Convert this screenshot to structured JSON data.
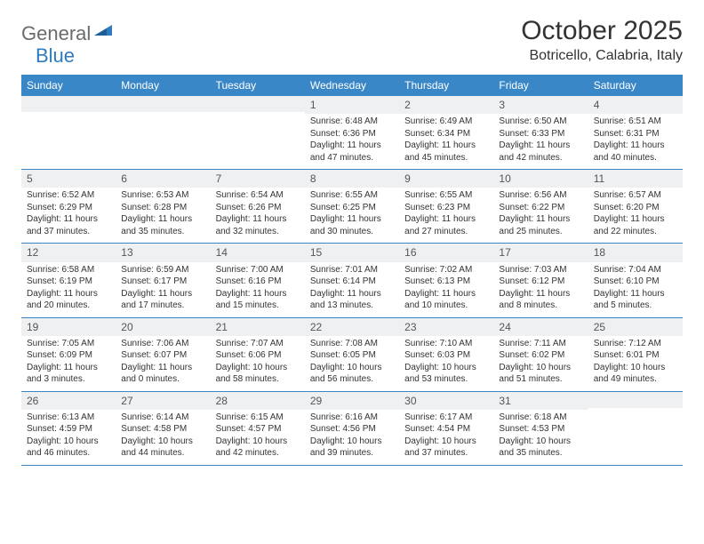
{
  "logo": {
    "text1": "General",
    "text2": "Blue"
  },
  "title": "October 2025",
  "location": "Botricello, Calabria, Italy",
  "colors": {
    "header_bg": "#3a87c7",
    "header_fg": "#ffffff",
    "daynum_bg": "#eef0f2",
    "daynum_fg": "#555555",
    "body_text": "#333333",
    "logo_gray": "#6b6b6b",
    "logo_blue": "#2f7bbf",
    "rule": "#3a87c7"
  },
  "dayNames": [
    "Sunday",
    "Monday",
    "Tuesday",
    "Wednesday",
    "Thursday",
    "Friday",
    "Saturday"
  ],
  "weeks": [
    [
      {
        "empty": true
      },
      {
        "empty": true
      },
      {
        "empty": true
      },
      {
        "n": "1",
        "sr": "6:48 AM",
        "ss": "6:36 PM",
        "dl": "11 hours and 47 minutes."
      },
      {
        "n": "2",
        "sr": "6:49 AM",
        "ss": "6:34 PM",
        "dl": "11 hours and 45 minutes."
      },
      {
        "n": "3",
        "sr": "6:50 AM",
        "ss": "6:33 PM",
        "dl": "11 hours and 42 minutes."
      },
      {
        "n": "4",
        "sr": "6:51 AM",
        "ss": "6:31 PM",
        "dl": "11 hours and 40 minutes."
      }
    ],
    [
      {
        "n": "5",
        "sr": "6:52 AM",
        "ss": "6:29 PM",
        "dl": "11 hours and 37 minutes."
      },
      {
        "n": "6",
        "sr": "6:53 AM",
        "ss": "6:28 PM",
        "dl": "11 hours and 35 minutes."
      },
      {
        "n": "7",
        "sr": "6:54 AM",
        "ss": "6:26 PM",
        "dl": "11 hours and 32 minutes."
      },
      {
        "n": "8",
        "sr": "6:55 AM",
        "ss": "6:25 PM",
        "dl": "11 hours and 30 minutes."
      },
      {
        "n": "9",
        "sr": "6:55 AM",
        "ss": "6:23 PM",
        "dl": "11 hours and 27 minutes."
      },
      {
        "n": "10",
        "sr": "6:56 AM",
        "ss": "6:22 PM",
        "dl": "11 hours and 25 minutes."
      },
      {
        "n": "11",
        "sr": "6:57 AM",
        "ss": "6:20 PM",
        "dl": "11 hours and 22 minutes."
      }
    ],
    [
      {
        "n": "12",
        "sr": "6:58 AM",
        "ss": "6:19 PM",
        "dl": "11 hours and 20 minutes."
      },
      {
        "n": "13",
        "sr": "6:59 AM",
        "ss": "6:17 PM",
        "dl": "11 hours and 17 minutes."
      },
      {
        "n": "14",
        "sr": "7:00 AM",
        "ss": "6:16 PM",
        "dl": "11 hours and 15 minutes."
      },
      {
        "n": "15",
        "sr": "7:01 AM",
        "ss": "6:14 PM",
        "dl": "11 hours and 13 minutes."
      },
      {
        "n": "16",
        "sr": "7:02 AM",
        "ss": "6:13 PM",
        "dl": "11 hours and 10 minutes."
      },
      {
        "n": "17",
        "sr": "7:03 AM",
        "ss": "6:12 PM",
        "dl": "11 hours and 8 minutes."
      },
      {
        "n": "18",
        "sr": "7:04 AM",
        "ss": "6:10 PM",
        "dl": "11 hours and 5 minutes."
      }
    ],
    [
      {
        "n": "19",
        "sr": "7:05 AM",
        "ss": "6:09 PM",
        "dl": "11 hours and 3 minutes."
      },
      {
        "n": "20",
        "sr": "7:06 AM",
        "ss": "6:07 PM",
        "dl": "11 hours and 0 minutes."
      },
      {
        "n": "21",
        "sr": "7:07 AM",
        "ss": "6:06 PM",
        "dl": "10 hours and 58 minutes."
      },
      {
        "n": "22",
        "sr": "7:08 AM",
        "ss": "6:05 PM",
        "dl": "10 hours and 56 minutes."
      },
      {
        "n": "23",
        "sr": "7:10 AM",
        "ss": "6:03 PM",
        "dl": "10 hours and 53 minutes."
      },
      {
        "n": "24",
        "sr": "7:11 AM",
        "ss": "6:02 PM",
        "dl": "10 hours and 51 minutes."
      },
      {
        "n": "25",
        "sr": "7:12 AM",
        "ss": "6:01 PM",
        "dl": "10 hours and 49 minutes."
      }
    ],
    [
      {
        "n": "26",
        "sr": "6:13 AM",
        "ss": "4:59 PM",
        "dl": "10 hours and 46 minutes."
      },
      {
        "n": "27",
        "sr": "6:14 AM",
        "ss": "4:58 PM",
        "dl": "10 hours and 44 minutes."
      },
      {
        "n": "28",
        "sr": "6:15 AM",
        "ss": "4:57 PM",
        "dl": "10 hours and 42 minutes."
      },
      {
        "n": "29",
        "sr": "6:16 AM",
        "ss": "4:56 PM",
        "dl": "10 hours and 39 minutes."
      },
      {
        "n": "30",
        "sr": "6:17 AM",
        "ss": "4:54 PM",
        "dl": "10 hours and 37 minutes."
      },
      {
        "n": "31",
        "sr": "6:18 AM",
        "ss": "4:53 PM",
        "dl": "10 hours and 35 minutes."
      },
      {
        "empty": true
      }
    ]
  ],
  "labels": {
    "sunrise": "Sunrise:",
    "sunset": "Sunset:",
    "daylight": "Daylight:"
  }
}
